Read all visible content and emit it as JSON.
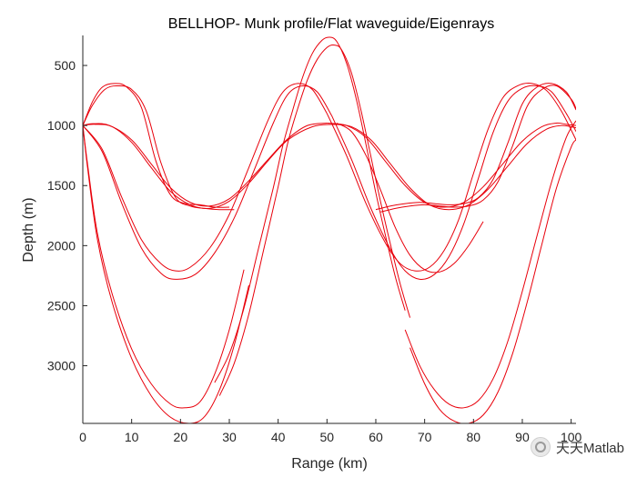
{
  "chart_data": {
    "type": "line",
    "title": "BELLHOP- Munk profile/Flat waveguide/Eigenrays",
    "xlabel": "Range (km)",
    "ylabel": "Depth (m)",
    "xlim": [
      0,
      101
    ],
    "ylim": [
      250,
      3480
    ],
    "y_reversed": true,
    "grid": false,
    "legend": "none",
    "x_ticks": [
      "0",
      "10",
      "20",
      "30",
      "40",
      "50",
      "60",
      "70",
      "80",
      "90",
      "100"
    ],
    "y_ticks": [
      "500",
      "1000",
      "1500",
      "2000",
      "2500",
      "3000"
    ],
    "line_color": "#e8000b",
    "series": [
      {
        "x": [
          0,
          2,
          5.5,
          10,
          14,
          18,
          22,
          26,
          30,
          34,
          38,
          42,
          46,
          50
        ],
        "values": [
          1000,
          985,
          1000,
          1120,
          1320,
          1520,
          1640,
          1670,
          1610,
          1460,
          1280,
          1110,
          1000,
          980
        ]
      },
      {
        "x": [
          0,
          2.5,
          6,
          10,
          14,
          18,
          22,
          26,
          30,
          34,
          38,
          42,
          47,
          51
        ],
        "values": [
          1000,
          990,
          1010,
          1140,
          1350,
          1550,
          1660,
          1690,
          1630,
          1480,
          1290,
          1120,
          1010,
          990
        ]
      },
      {
        "x": [
          0,
          2,
          4,
          6.5,
          9,
          12,
          15,
          18,
          21,
          24,
          27,
          30
        ],
        "values": [
          1000,
          800,
          680,
          650,
          680,
          850,
          1300,
          1580,
          1650,
          1660,
          1680,
          1680
        ]
      },
      {
        "x": [
          0,
          2,
          4.5,
          7,
          10,
          13,
          16,
          19,
          22,
          25,
          28,
          31
        ],
        "values": [
          1000,
          830,
          700,
          670,
          700,
          880,
          1310,
          1600,
          1670,
          1690,
          1700,
          1700
        ]
      },
      {
        "x": [
          0,
          4,
          8,
          12,
          16,
          19,
          22,
          26,
          30,
          34,
          38,
          41,
          44,
          47,
          50
        ],
        "values": [
          1000,
          1200,
          1600,
          1950,
          2150,
          2210,
          2180,
          2020,
          1740,
          1350,
          950,
          720,
          650,
          700,
          900
        ]
      },
      {
        "x": [
          0,
          4,
          8,
          12,
          16,
          19,
          23,
          27,
          31,
          35,
          39,
          42,
          45,
          48,
          51
        ],
        "values": [
          1000,
          1220,
          1650,
          2020,
          2230,
          2280,
          2240,
          2060,
          1770,
          1380,
          980,
          740,
          670,
          720,
          920
        ]
      },
      {
        "x": [
          0,
          1,
          3,
          6,
          10,
          14,
          18,
          21,
          24,
          27,
          30,
          33
        ],
        "values": [
          1000,
          1330,
          1900,
          2400,
          2860,
          3150,
          3320,
          3350,
          3300,
          3070,
          2700,
          2200
        ]
      },
      {
        "x": [
          0,
          1,
          3,
          6,
          10,
          14,
          18,
          22,
          25,
          28,
          31,
          34
        ],
        "values": [
          1000,
          1360,
          1950,
          2470,
          2940,
          3250,
          3430,
          3480,
          3420,
          3200,
          2830,
          2330
        ]
      },
      {
        "x": [
          27,
          30,
          33,
          36,
          39,
          41,
          43,
          45,
          47,
          49,
          50.5,
          52,
          54,
          56,
          58,
          60,
          62,
          64,
          66
        ],
        "values": [
          3140,
          2900,
          2520,
          2020,
          1520,
          1160,
          870,
          600,
          400,
          290,
          265,
          300,
          480,
          780,
          1160,
          1560,
          1920,
          2260,
          2540
        ]
      },
      {
        "x": [
          28,
          31,
          34,
          37,
          40,
          42,
          44,
          46,
          48,
          50,
          51.5,
          53,
          55,
          57,
          59,
          61,
          63,
          65,
          67
        ],
        "values": [
          3250,
          2980,
          2570,
          2040,
          1510,
          1140,
          860,
          620,
          450,
          350,
          330,
          370,
          560,
          880,
          1260,
          1640,
          1990,
          2320,
          2600
        ]
      },
      {
        "x": [
          50,
          54,
          58,
          62,
          65,
          68,
          71,
          74,
          77,
          80,
          83,
          86,
          89,
          92,
          95,
          98,
          101
        ],
        "values": [
          900,
          1250,
          1650,
          1980,
          2150,
          2210,
          2180,
          2040,
          1780,
          1400,
          1030,
          770,
          670,
          650,
          710,
          880,
          1120
        ]
      },
      {
        "x": [
          51,
          55,
          59,
          63,
          66,
          69,
          72,
          75,
          78,
          81,
          84,
          87,
          90,
          93,
          96,
          99,
          101
        ],
        "values": [
          920,
          1280,
          1690,
          2030,
          2210,
          2280,
          2240,
          2090,
          1820,
          1440,
          1060,
          800,
          690,
          670,
          720,
          900,
          1050
        ]
      },
      {
        "x": [
          50,
          54,
          58,
          62,
          66,
          70,
          74,
          78,
          82,
          86,
          90,
          94,
          97,
          99,
          101
        ],
        "values": [
          980,
          1000,
          1100,
          1300,
          1500,
          1640,
          1680,
          1640,
          1510,
          1320,
          1130,
          1010,
          980,
          990,
          1000
        ]
      },
      {
        "x": [
          51,
          55,
          59,
          63,
          67,
          71,
          75,
          79,
          83,
          87,
          91,
          95,
          98,
          100,
          101
        ],
        "values": [
          990,
          1010,
          1120,
          1320,
          1520,
          1660,
          1700,
          1660,
          1530,
          1340,
          1150,
          1030,
          1000,
          1010,
          1020
        ]
      },
      {
        "x": [
          60,
          63,
          66,
          69,
          72,
          75,
          78,
          81,
          84,
          87,
          90,
          93,
          96,
          99,
          101
        ],
        "values": [
          1700,
          1670,
          1650,
          1640,
          1650,
          1660,
          1650,
          1600,
          1450,
          1150,
          820,
          680,
          650,
          720,
          870
        ]
      },
      {
        "x": [
          61,
          64,
          67,
          70,
          73,
          76,
          79,
          82,
          85,
          88,
          91,
          94,
          97,
          100,
          101
        ],
        "values": [
          1720,
          1690,
          1670,
          1660,
          1670,
          1680,
          1670,
          1620,
          1470,
          1170,
          840,
          700,
          670,
          780,
          860
        ]
      },
      {
        "x": [
          66,
          69,
          72,
          75,
          78,
          81,
          84,
          87,
          90,
          93,
          96,
          99,
          101
        ],
        "values": [
          2700,
          3000,
          3200,
          3320,
          3350,
          3290,
          3110,
          2800,
          2380,
          1920,
          1470,
          1100,
          960
        ]
      },
      {
        "x": [
          67,
          70,
          73,
          76,
          79,
          82,
          85,
          88,
          91,
          94,
          97,
          100,
          101
        ],
        "values": [
          2850,
          3150,
          3360,
          3460,
          3480,
          3410,
          3220,
          2900,
          2470,
          1990,
          1520,
          1180,
          1120
        ]
      },
      {
        "x": [
          52,
          55,
          58,
          61,
          64,
          67,
          70,
          73,
          76,
          79,
          82
        ],
        "values": [
          980,
          1050,
          1250,
          1540,
          1850,
          2080,
          2200,
          2220,
          2150,
          2000,
          1800
        ]
      }
    ]
  },
  "watermark": {
    "text": "天天Matlab"
  }
}
